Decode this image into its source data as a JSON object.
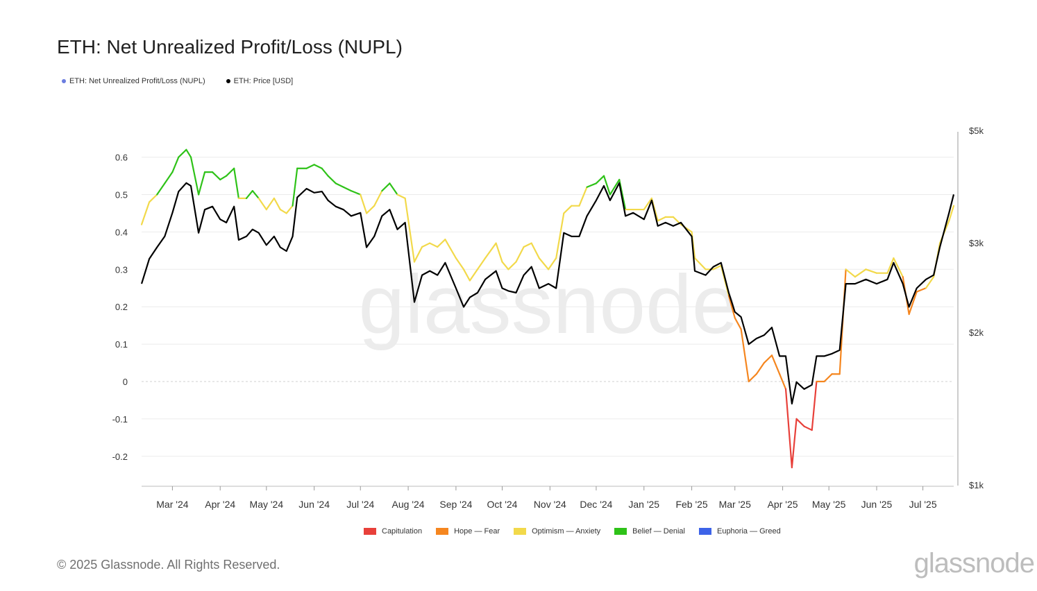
{
  "chart_data": {
    "type": "line",
    "title": "ETH: Net Unrealized Profit/Loss (NUPL)",
    "series": [
      {
        "name": "ETH: Net Unrealized Profit/Loss (NUPL)",
        "color": "#6b7de0",
        "axis": "left"
      },
      {
        "name": "ETH: Price [USD]",
        "color": "#000000",
        "axis": "right"
      }
    ],
    "x_ticks": [
      "Mar '24",
      "Apr '24",
      "May '24",
      "Jun '24",
      "Jul '24",
      "Aug '24",
      "Sep '24",
      "Oct '24",
      "Nov '24",
      "Dec '24",
      "Jan '25",
      "Feb '25",
      "Mar '25",
      "Apr '25",
      "May '25",
      "Jun '25",
      "Jul '25"
    ],
    "left_axis": {
      "ticks": [
        0.6,
        0.5,
        0.4,
        0.3,
        0.2,
        0.1,
        0,
        -0.1,
        -0.2
      ],
      "tick_labels": [
        "0.6",
        "0.5",
        "0.4",
        "0.3",
        "0.2",
        "0.1",
        "0",
        "-0.1",
        "-0.2"
      ]
    },
    "right_axis": {
      "scale": "log",
      "ticks": [
        5000,
        3000,
        2000,
        1000
      ],
      "tick_labels": [
        "$5k",
        "$3k",
        "$2k",
        "$1k"
      ]
    },
    "nupl": [
      [
        "2024-02-10",
        0.42
      ],
      [
        "2024-02-15",
        0.48
      ],
      [
        "2024-02-20",
        0.5
      ],
      [
        "2024-02-25",
        0.53
      ],
      [
        "2024-03-01",
        0.56
      ],
      [
        "2024-03-05",
        0.6
      ],
      [
        "2024-03-10",
        0.62
      ],
      [
        "2024-03-13",
        0.6
      ],
      [
        "2024-03-18",
        0.5
      ],
      [
        "2024-03-22",
        0.56
      ],
      [
        "2024-03-27",
        0.56
      ],
      [
        "2024-04-01",
        0.54
      ],
      [
        "2024-04-05",
        0.55
      ],
      [
        "2024-04-10",
        0.57
      ],
      [
        "2024-04-13",
        0.49
      ],
      [
        "2024-04-18",
        0.49
      ],
      [
        "2024-04-22",
        0.51
      ],
      [
        "2024-04-26",
        0.49
      ],
      [
        "2024-05-01",
        0.46
      ],
      [
        "2024-05-06",
        0.49
      ],
      [
        "2024-05-10",
        0.46
      ],
      [
        "2024-05-14",
        0.45
      ],
      [
        "2024-05-18",
        0.47
      ],
      [
        "2024-05-21",
        0.57
      ],
      [
        "2024-05-27",
        0.57
      ],
      [
        "2024-06-01",
        0.58
      ],
      [
        "2024-06-06",
        0.57
      ],
      [
        "2024-06-10",
        0.55
      ],
      [
        "2024-06-15",
        0.53
      ],
      [
        "2024-06-20",
        0.52
      ],
      [
        "2024-06-25",
        0.51
      ],
      [
        "2024-07-01",
        0.5
      ],
      [
        "2024-07-05",
        0.45
      ],
      [
        "2024-07-10",
        0.47
      ],
      [
        "2024-07-15",
        0.51
      ],
      [
        "2024-07-20",
        0.53
      ],
      [
        "2024-07-25",
        0.5
      ],
      [
        "2024-07-30",
        0.49
      ],
      [
        "2024-08-05",
        0.32
      ],
      [
        "2024-08-10",
        0.36
      ],
      [
        "2024-08-15",
        0.37
      ],
      [
        "2024-08-20",
        0.36
      ],
      [
        "2024-08-25",
        0.38
      ],
      [
        "2024-09-01",
        0.33
      ],
      [
        "2024-09-06",
        0.3
      ],
      [
        "2024-09-10",
        0.27
      ],
      [
        "2024-09-15",
        0.3
      ],
      [
        "2024-09-20",
        0.33
      ],
      [
        "2024-09-27",
        0.37
      ],
      [
        "2024-10-01",
        0.32
      ],
      [
        "2024-10-05",
        0.3
      ],
      [
        "2024-10-10",
        0.32
      ],
      [
        "2024-10-15",
        0.36
      ],
      [
        "2024-10-20",
        0.37
      ],
      [
        "2024-10-25",
        0.33
      ],
      [
        "2024-10-31",
        0.3
      ],
      [
        "2024-11-05",
        0.33
      ],
      [
        "2024-11-10",
        0.45
      ],
      [
        "2024-11-15",
        0.47
      ],
      [
        "2024-11-20",
        0.47
      ],
      [
        "2024-11-25",
        0.52
      ],
      [
        "2024-12-01",
        0.53
      ],
      [
        "2024-12-06",
        0.55
      ],
      [
        "2024-12-10",
        0.5
      ],
      [
        "2024-12-16",
        0.54
      ],
      [
        "2024-12-20",
        0.46
      ],
      [
        "2024-12-25",
        0.46
      ],
      [
        "2025-01-01",
        0.46
      ],
      [
        "2025-01-06",
        0.49
      ],
      [
        "2025-01-10",
        0.43
      ],
      [
        "2025-01-15",
        0.44
      ],
      [
        "2025-01-20",
        0.44
      ],
      [
        "2025-01-25",
        0.42
      ],
      [
        "2025-02-01",
        0.4
      ],
      [
        "2025-02-03",
        0.33
      ],
      [
        "2025-02-10",
        0.3
      ],
      [
        "2025-02-15",
        0.3
      ],
      [
        "2025-02-20",
        0.31
      ],
      [
        "2025-02-25",
        0.23
      ],
      [
        "2025-03-01",
        0.17
      ],
      [
        "2025-03-05",
        0.14
      ],
      [
        "2025-03-10",
        0.0
      ],
      [
        "2025-03-15",
        0.02
      ],
      [
        "2025-03-20",
        0.05
      ],
      [
        "2025-03-25",
        0.07
      ],
      [
        "2025-03-30",
        0.02
      ],
      [
        "2025-04-03",
        -0.02
      ],
      [
        "2025-04-07",
        -0.23
      ],
      [
        "2025-04-10",
        -0.1
      ],
      [
        "2025-04-15",
        -0.12
      ],
      [
        "2025-04-20",
        -0.13
      ],
      [
        "2025-04-23",
        0.0
      ],
      [
        "2025-04-28",
        0.0
      ],
      [
        "2025-05-03",
        0.02
      ],
      [
        "2025-05-08",
        0.02
      ],
      [
        "2025-05-12",
        0.3
      ],
      [
        "2025-05-18",
        0.28
      ],
      [
        "2025-05-25",
        0.3
      ],
      [
        "2025-06-01",
        0.29
      ],
      [
        "2025-06-08",
        0.29
      ],
      [
        "2025-06-12",
        0.33
      ],
      [
        "2025-06-18",
        0.28
      ],
      [
        "2025-06-22",
        0.18
      ],
      [
        "2025-06-27",
        0.24
      ],
      [
        "2025-07-03",
        0.25
      ],
      [
        "2025-07-08",
        0.28
      ],
      [
        "2025-07-12",
        0.37
      ],
      [
        "2025-07-18",
        0.43
      ],
      [
        "2025-07-21",
        0.47
      ]
    ],
    "price_usd": [
      [
        "2024-02-10",
        2500
      ],
      [
        "2024-02-15",
        2800
      ],
      [
        "2024-02-20",
        2950
      ],
      [
        "2024-02-25",
        3100
      ],
      [
        "2024-03-01",
        3450
      ],
      [
        "2024-03-05",
        3800
      ],
      [
        "2024-03-10",
        3950
      ],
      [
        "2024-03-13",
        3900
      ],
      [
        "2024-03-18",
        3150
      ],
      [
        "2024-03-22",
        3500
      ],
      [
        "2024-03-27",
        3550
      ],
      [
        "2024-04-01",
        3350
      ],
      [
        "2024-04-05",
        3300
      ],
      [
        "2024-04-10",
        3550
      ],
      [
        "2024-04-13",
        3050
      ],
      [
        "2024-04-18",
        3100
      ],
      [
        "2024-04-22",
        3200
      ],
      [
        "2024-04-26",
        3150
      ],
      [
        "2024-05-01",
        2980
      ],
      [
        "2024-05-06",
        3100
      ],
      [
        "2024-05-10",
        2950
      ],
      [
        "2024-05-14",
        2900
      ],
      [
        "2024-05-18",
        3100
      ],
      [
        "2024-05-21",
        3700
      ],
      [
        "2024-05-27",
        3850
      ],
      [
        "2024-06-01",
        3780
      ],
      [
        "2024-06-06",
        3800
      ],
      [
        "2024-06-10",
        3650
      ],
      [
        "2024-06-15",
        3550
      ],
      [
        "2024-06-20",
        3500
      ],
      [
        "2024-06-25",
        3400
      ],
      [
        "2024-07-01",
        3450
      ],
      [
        "2024-07-05",
        2950
      ],
      [
        "2024-07-10",
        3100
      ],
      [
        "2024-07-15",
        3400
      ],
      [
        "2024-07-20",
        3500
      ],
      [
        "2024-07-25",
        3200
      ],
      [
        "2024-07-30",
        3300
      ],
      [
        "2024-08-05",
        2300
      ],
      [
        "2024-08-10",
        2600
      ],
      [
        "2024-08-15",
        2650
      ],
      [
        "2024-08-20",
        2600
      ],
      [
        "2024-08-25",
        2750
      ],
      [
        "2024-09-01",
        2450
      ],
      [
        "2024-09-06",
        2250
      ],
      [
        "2024-09-10",
        2350
      ],
      [
        "2024-09-15",
        2400
      ],
      [
        "2024-09-20",
        2550
      ],
      [
        "2024-09-27",
        2650
      ],
      [
        "2024-10-01",
        2450
      ],
      [
        "2024-10-05",
        2420
      ],
      [
        "2024-10-10",
        2400
      ],
      [
        "2024-10-15",
        2600
      ],
      [
        "2024-10-20",
        2700
      ],
      [
        "2024-10-25",
        2450
      ],
      [
        "2024-10-31",
        2500
      ],
      [
        "2024-11-05",
        2450
      ],
      [
        "2024-11-10",
        3150
      ],
      [
        "2024-11-15",
        3100
      ],
      [
        "2024-11-20",
        3100
      ],
      [
        "2024-11-25",
        3400
      ],
      [
        "2024-12-01",
        3650
      ],
      [
        "2024-12-06",
        3900
      ],
      [
        "2024-12-10",
        3650
      ],
      [
        "2024-12-16",
        3950
      ],
      [
        "2024-12-20",
        3400
      ],
      [
        "2024-12-25",
        3450
      ],
      [
        "2025-01-01",
        3350
      ],
      [
        "2025-01-06",
        3650
      ],
      [
        "2025-01-10",
        3250
      ],
      [
        "2025-01-15",
        3300
      ],
      [
        "2025-01-20",
        3250
      ],
      [
        "2025-01-25",
        3300
      ],
      [
        "2025-02-01",
        3100
      ],
      [
        "2025-02-03",
        2650
      ],
      [
        "2025-02-10",
        2600
      ],
      [
        "2025-02-15",
        2700
      ],
      [
        "2025-02-20",
        2750
      ],
      [
        "2025-02-25",
        2400
      ],
      [
        "2025-03-01",
        2200
      ],
      [
        "2025-03-05",
        2150
      ],
      [
        "2025-03-10",
        1900
      ],
      [
        "2025-03-15",
        1950
      ],
      [
        "2025-03-20",
        1980
      ],
      [
        "2025-03-25",
        2050
      ],
      [
        "2025-03-30",
        1800
      ],
      [
        "2025-04-03",
        1800
      ],
      [
        "2025-04-07",
        1450
      ],
      [
        "2025-04-10",
        1600
      ],
      [
        "2025-04-15",
        1550
      ],
      [
        "2025-04-20",
        1580
      ],
      [
        "2025-04-23",
        1800
      ],
      [
        "2025-04-28",
        1800
      ],
      [
        "2025-05-03",
        1820
      ],
      [
        "2025-05-08",
        1850
      ],
      [
        "2025-05-12",
        2500
      ],
      [
        "2025-05-18",
        2500
      ],
      [
        "2025-05-25",
        2550
      ],
      [
        "2025-06-01",
        2500
      ],
      [
        "2025-06-08",
        2550
      ],
      [
        "2025-06-12",
        2750
      ],
      [
        "2025-06-18",
        2500
      ],
      [
        "2025-06-22",
        2250
      ],
      [
        "2025-06-27",
        2450
      ],
      [
        "2025-07-03",
        2550
      ],
      [
        "2025-07-08",
        2600
      ],
      [
        "2025-07-12",
        2950
      ],
      [
        "2025-07-18",
        3450
      ],
      [
        "2025-07-21",
        3750
      ]
    ],
    "zones": [
      {
        "name": "Capitulation",
        "color": "#e8403a",
        "min": null,
        "max": 0
      },
      {
        "name": "Hope — Fear",
        "color": "#f5861f",
        "min": 0,
        "max": 0.25
      },
      {
        "name": "Optimism — Anxiety",
        "color": "#f2d94a",
        "min": 0.25,
        "max": 0.5
      },
      {
        "name": "Belief — Denial",
        "color": "#2ec218",
        "min": 0.5,
        "max": 0.75
      },
      {
        "name": "Euphoria — Greed",
        "color": "#3d63e8",
        "min": 0.75,
        "max": null
      }
    ],
    "grid": true,
    "watermark": "glassnode"
  },
  "footer": {
    "copyright": "© 2025 Glassnode. All Rights Reserved.",
    "logo": "glassnode"
  }
}
